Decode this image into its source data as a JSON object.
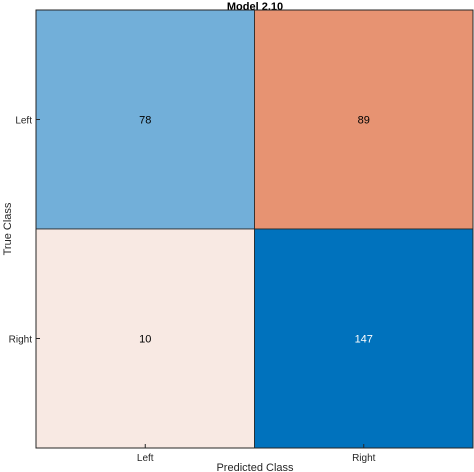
{
  "chart_data": {
    "type": "heatmap",
    "title": "Model 2.10",
    "xlabel": "Predicted Class",
    "ylabel": "True Class",
    "x_categories": [
      "Left",
      "Right"
    ],
    "y_categories": [
      "Left",
      "Right"
    ],
    "cells": [
      {
        "true": "Left",
        "predicted": "Left",
        "value": 78,
        "color": "#72afd9"
      },
      {
        "true": "Left",
        "predicted": "Right",
        "value": 89,
        "color": "#e79372"
      },
      {
        "true": "Right",
        "predicted": "Left",
        "value": 10,
        "color": "#f8e9e3"
      },
      {
        "true": "Right",
        "predicted": "Right",
        "value": 147,
        "color": "#0072bd"
      }
    ],
    "text_colors": {
      "light_cell": "#000000",
      "dark_cell": "#ffffff"
    }
  }
}
